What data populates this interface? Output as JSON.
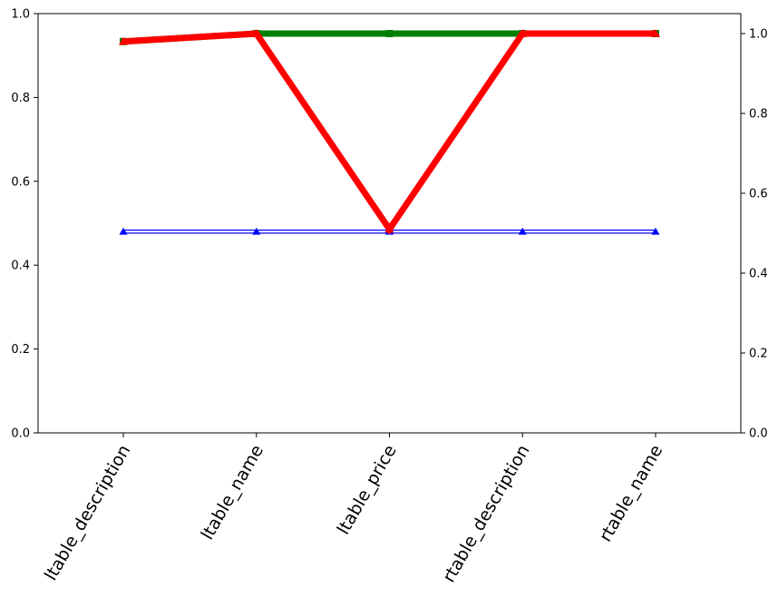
{
  "chart_data": {
    "type": "line",
    "title": "",
    "xlabel": "",
    "ylabel": "",
    "categories": [
      "ltable_description",
      "ltable_name",
      "ltable_price",
      "rtable_description",
      "rtable_name"
    ],
    "left_axis": {
      "ylim": [
        0,
        1.0
      ],
      "ticks": [
        0.0,
        0.2,
        0.4,
        0.6,
        0.8,
        1.0
      ],
      "tick_labels": [
        "0.0",
        "0.2",
        "0.4",
        "0.6",
        "0.8",
        "1.0"
      ]
    },
    "right_axis": {
      "ylim": [
        0,
        1.05
      ],
      "ticks": [
        0.0,
        0.2,
        0.4,
        0.6,
        0.8,
        1.0
      ],
      "tick_labels": [
        "0.0",
        "0.2",
        "0.4",
        "0.6",
        "0.8",
        "1.0"
      ]
    },
    "grid": false,
    "legend": "none",
    "series": [
      {
        "axis": "left",
        "color": "#0000ff",
        "marker": "triangle",
        "line": "double-thin",
        "values": [
          0.48,
          0.48,
          0.48,
          0.48,
          0.48
        ]
      },
      {
        "axis": "right",
        "color": "#008000",
        "marker": "square",
        "line": "thick",
        "values": [
          0.98,
          1.0,
          1.0,
          1.0,
          1.0
        ]
      },
      {
        "axis": "right",
        "color": "#ff0000",
        "marker": "triangle",
        "line": "thick",
        "values": [
          0.98,
          1.0,
          0.51,
          1.0,
          1.0
        ]
      }
    ]
  }
}
